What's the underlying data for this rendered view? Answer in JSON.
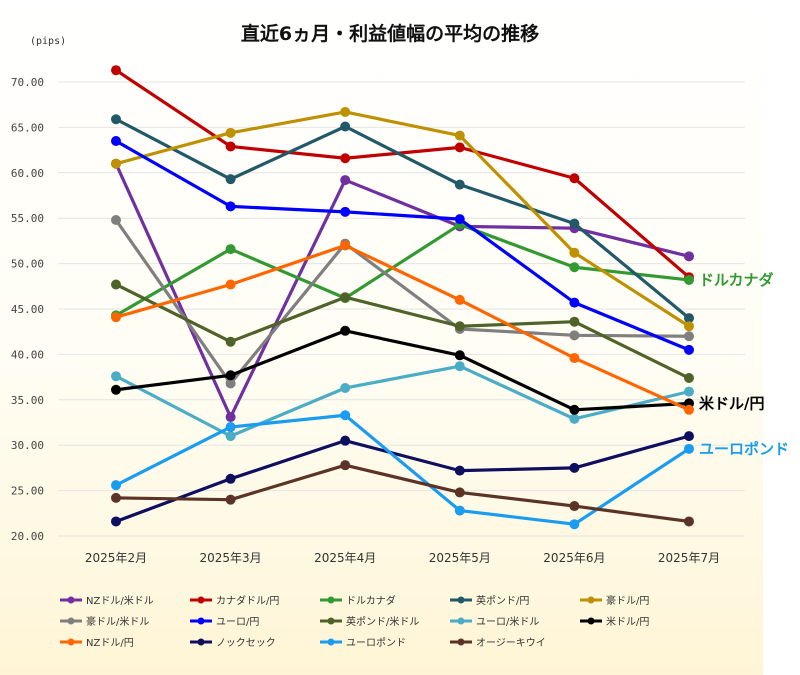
{
  "chart_data": {
    "type": "line",
    "title": "直近6ヵ月・利益値幅の平均の推移",
    "ylabel": "(pips)",
    "xlabel": "",
    "categories": [
      "2025年2月",
      "2025年3月",
      "2025年4月",
      "2025年5月",
      "2025年6月",
      "2025年7月"
    ],
    "ylim": [
      20,
      72
    ],
    "yticks": [
      "20.00",
      "25.00",
      "30.00",
      "35.00",
      "40.00",
      "45.00",
      "50.00",
      "55.00",
      "60.00",
      "65.00",
      "70.00"
    ],
    "grid": true,
    "legend_position": "bottom",
    "series": [
      {
        "name": "NZドル/米ドル",
        "color": "#7030a0",
        "values": [
          61.0,
          33.1,
          59.2,
          54.1,
          53.9,
          50.8
        ]
      },
      {
        "name": "カナダドル/円",
        "color": "#c00000",
        "values": [
          71.3,
          62.9,
          61.6,
          62.8,
          59.4,
          48.5
        ]
      },
      {
        "name": "ドルカナダ",
        "color": "#339933",
        "values": [
          44.3,
          51.6,
          46.2,
          54.3,
          49.6,
          48.2
        ]
      },
      {
        "name": "英ポンド/円",
        "color": "#215968",
        "values": [
          65.9,
          59.3,
          65.1,
          58.7,
          54.4,
          44.0
        ]
      },
      {
        "name": "豪ドル/円",
        "color": "#bf9000",
        "values": [
          61.0,
          64.4,
          66.7,
          64.1,
          51.2,
          43.1
        ]
      },
      {
        "name": "豪ドル/米ドル",
        "color": "#7f7f7f",
        "values": [
          54.8,
          36.8,
          52.2,
          42.8,
          42.1,
          42.0
        ]
      },
      {
        "name": "ユーロ/円",
        "color": "#0000ff",
        "values": [
          63.5,
          56.3,
          55.7,
          54.9,
          45.7,
          40.5
        ]
      },
      {
        "name": "英ポンド/米ドル",
        "color": "#4f6228",
        "values": [
          47.7,
          41.4,
          46.3,
          43.1,
          43.6,
          37.4
        ]
      },
      {
        "name": "ユーロ/米ドル",
        "color": "#4bacc6",
        "values": [
          37.6,
          31.0,
          36.3,
          38.7,
          32.9,
          35.9
        ]
      },
      {
        "name": "米ドル/円",
        "color": "#000000",
        "values": [
          36.1,
          37.7,
          42.6,
          39.9,
          33.9,
          34.6
        ]
      },
      {
        "name": "NZドル/円",
        "color": "#ff6600",
        "values": [
          44.1,
          47.7,
          52.0,
          46.0,
          39.6,
          33.9
        ]
      },
      {
        "name": "ノックセック",
        "color": "#0f0f5f",
        "values": [
          21.6,
          26.3,
          30.5,
          27.2,
          27.5,
          31.0
        ]
      },
      {
        "name": "ユーロポンド",
        "color": "#1a9cf0",
        "values": [
          25.6,
          32.0,
          33.3,
          22.8,
          21.3,
          29.6
        ]
      },
      {
        "name": "オージーキウイ",
        "color": "#5c3327",
        "values": [
          24.2,
          24.0,
          27.8,
          24.8,
          23.3,
          21.6
        ]
      }
    ],
    "annotations": [
      {
        "text": "ドルカナダ",
        "color": "#339933",
        "series_index": 2
      },
      {
        "text": "米ドル/円",
        "color": "#000000",
        "series_index": 9
      },
      {
        "text": "ユーロポンド",
        "color": "#1a9cf0",
        "series_index": 12
      }
    ]
  }
}
